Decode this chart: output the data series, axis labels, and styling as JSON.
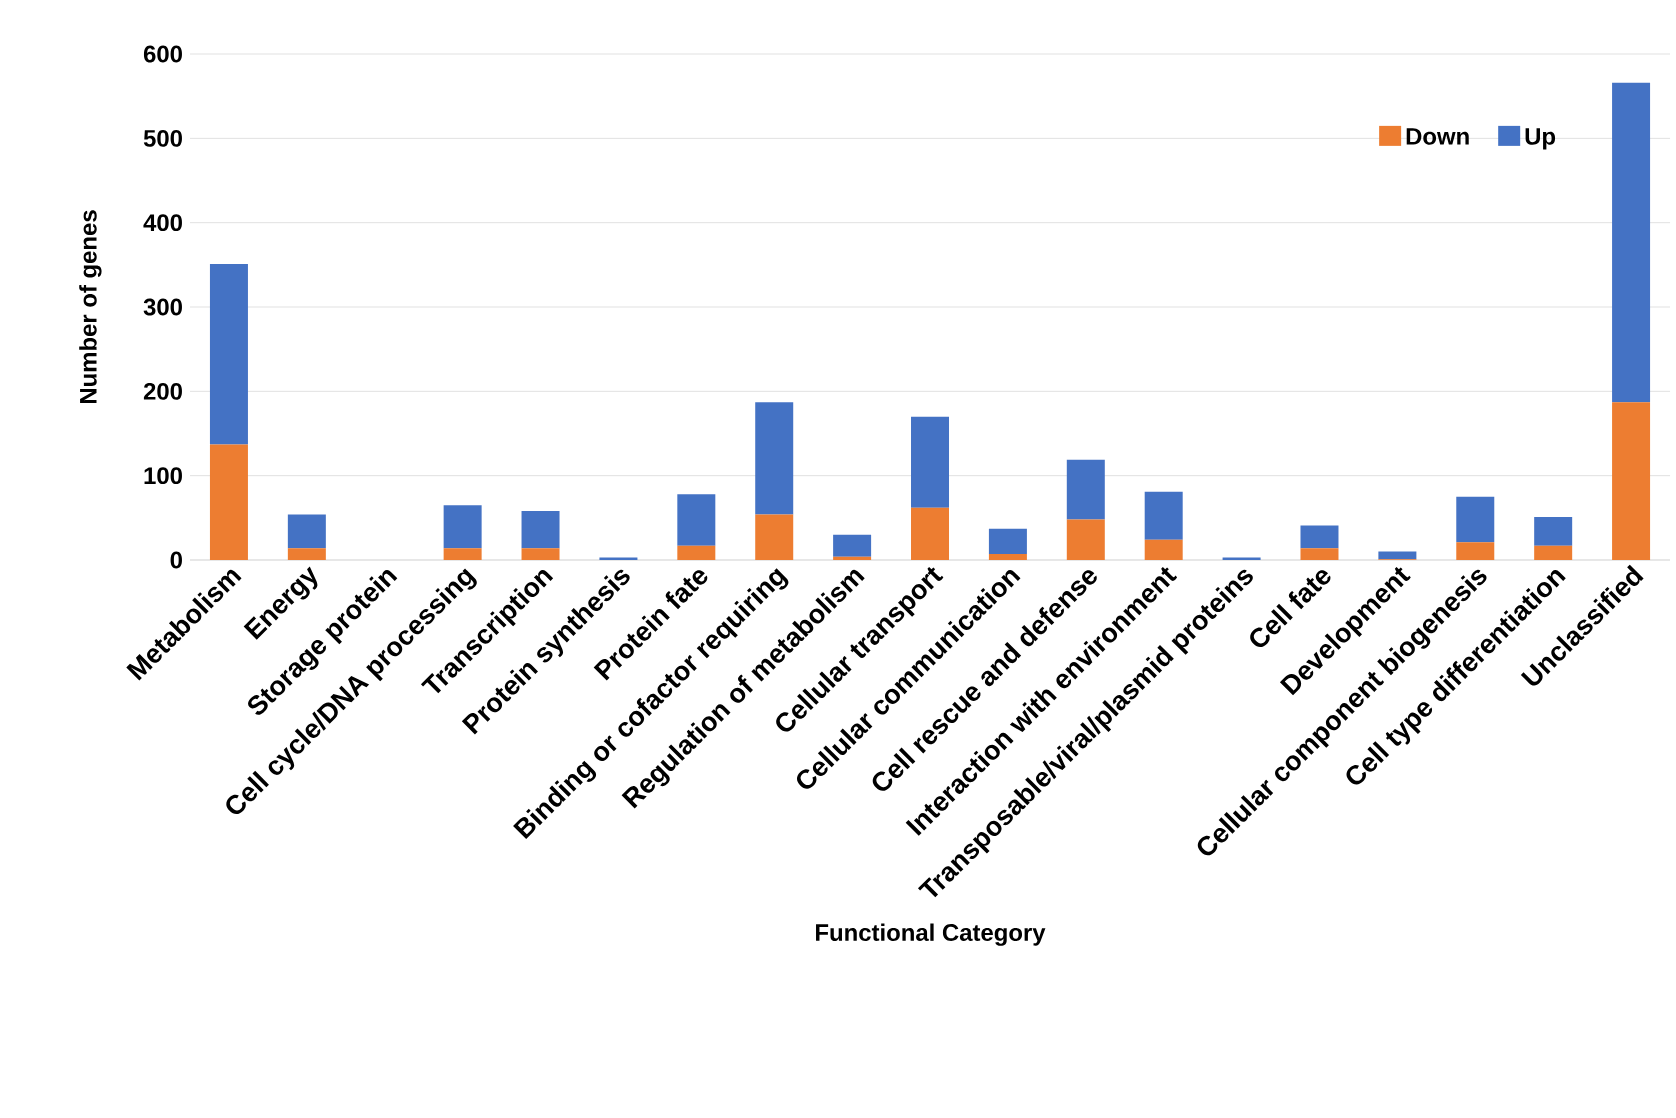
{
  "chart_data": {
    "type": "bar",
    "stacked": true,
    "xlabel": "Functional Category",
    "ylabel": "Number of genes",
    "categories": [
      "Metabolism",
      "Energy",
      "Storage protein",
      "Cell cycle/DNA processing",
      "Transcription",
      "Protein synthesis",
      "Protein fate",
      "Binding or cofactor requiring",
      "Regulation of metabolism",
      "Cellular transport",
      "Cellular communication",
      "Cell rescue and defense",
      "Interaction with environment",
      "Transposable/viral/plasmid proteins",
      "Cell fate",
      "Development",
      "Cellular component biogenesis",
      "Cell type differentiation",
      "Unclassified"
    ],
    "series": [
      {
        "name": "Down",
        "color": "#ed7d31",
        "values": [
          137,
          14,
          0,
          14,
          14,
          0,
          17,
          54,
          4,
          62,
          7,
          48,
          24,
          0,
          14,
          1,
          21,
          17,
          187
        ]
      },
      {
        "name": "Up",
        "color": "#4472c4",
        "values": [
          214,
          40,
          0,
          51,
          44,
          3,
          61,
          133,
          26,
          108,
          30,
          71,
          57,
          3,
          27,
          9,
          54,
          34,
          379
        ]
      }
    ],
    "ylim": [
      0,
      600
    ],
    "yticks": [
      0,
      100,
      200,
      300,
      400,
      500,
      600
    ],
    "grid": "y",
    "legend": "top right"
  }
}
